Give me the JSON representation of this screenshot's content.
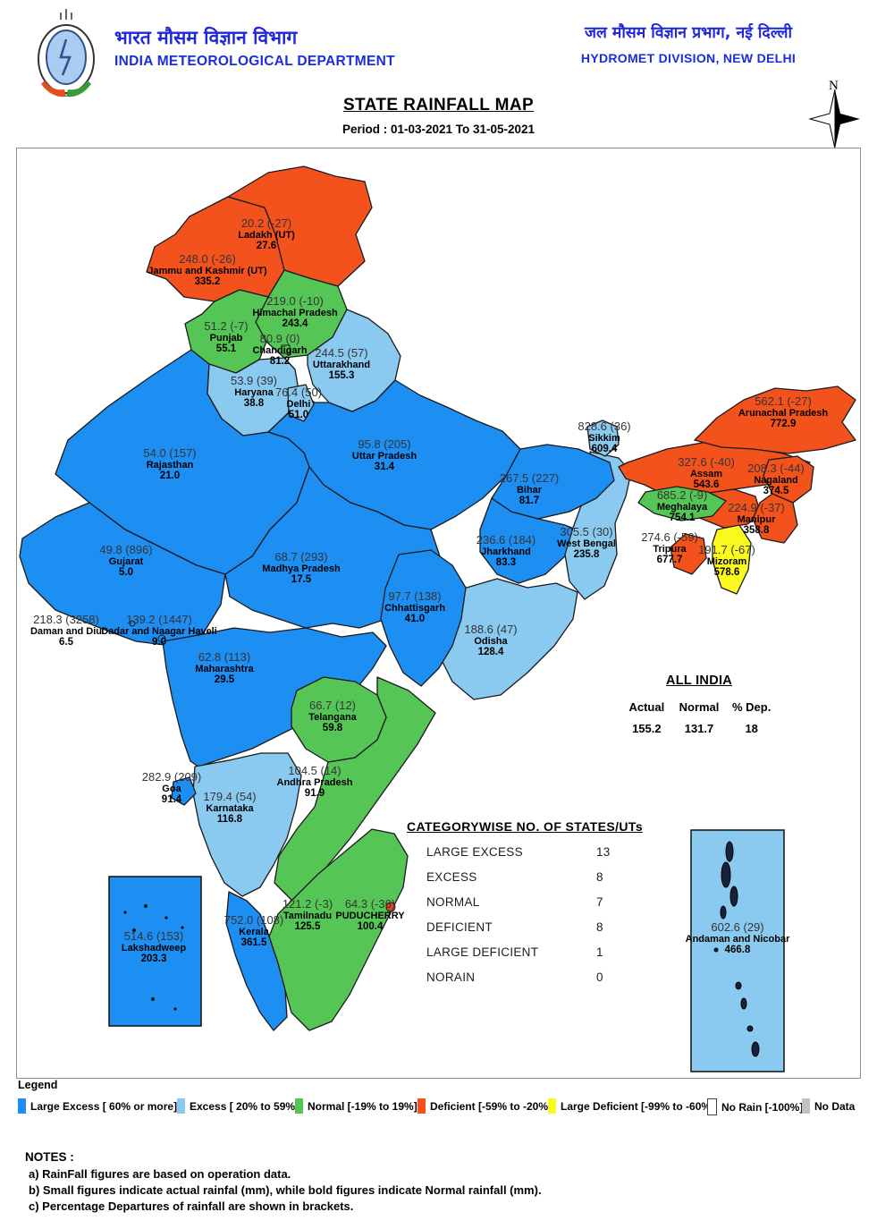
{
  "header": {
    "org_hindi": "भारत मौसम विज्ञान विभाग",
    "org_english": "INDIA METEOROLOGICAL DEPARTMENT",
    "division_hindi": "जल मौसम विज्ञान प्रभाग, नई दिल्ली",
    "division_english": "HYDROMET DIVISION, NEW DELHI",
    "title": "STATE RAINFALL MAP",
    "period": "Period : 01-03-2021 To 31-05-2021",
    "compass_label": "N"
  },
  "map": {
    "states": [
      {
        "id": "rajasthan",
        "name": "Rajasthan",
        "actual": "54.0",
        "departure_pct": "157",
        "normal": "21.0",
        "category": "large_excess"
      },
      {
        "id": "gujarat",
        "name": "Gujarat",
        "actual": "49.8",
        "departure_pct": "896",
        "normal": "5.0",
        "category": "large_excess"
      },
      {
        "id": "uttar_pradesh",
        "name": "Uttar Pradesh",
        "actual": "95.8",
        "departure_pct": "205",
        "normal": "31.4",
        "category": "large_excess"
      },
      {
        "id": "madhya_pradesh",
        "name": "Madhya Pradesh",
        "actual": "68.7",
        "departure_pct": "293",
        "normal": "17.5",
        "category": "large_excess"
      },
      {
        "id": "maharashtra",
        "name": "Maharashtra",
        "actual": "62.8",
        "departure_pct": "113",
        "normal": "29.5",
        "category": "large_excess"
      },
      {
        "id": "andhra_pradesh",
        "name": "Andhra Pradesh",
        "actual": "104.5",
        "departure_pct": "14",
        "normal": "91.9",
        "category": "normal"
      },
      {
        "id": "karnataka",
        "name": "Karnataka",
        "actual": "179.4",
        "departure_pct": "54",
        "normal": "116.8",
        "category": "excess"
      },
      {
        "id": "tamilnadu",
        "name": "Tamilnadu",
        "actual": "121.2",
        "departure_pct": "-3",
        "normal": "125.5",
        "category": "normal"
      },
      {
        "id": "kerala",
        "name": "Kerala",
        "actual": "752.0",
        "departure_pct": "108",
        "normal": "361.5",
        "category": "large_excess"
      },
      {
        "id": "odisha",
        "name": "Odisha",
        "actual": "188.6",
        "departure_pct": "47",
        "normal": "128.4",
        "category": "excess"
      },
      {
        "id": "chhattisgarh",
        "name": "Chhattisgarh",
        "actual": "97.7",
        "departure_pct": "138",
        "normal": "41.0",
        "category": "large_excess"
      },
      {
        "id": "jharkhand",
        "name": "Jharkhand",
        "actual": "236.6",
        "departure_pct": "184",
        "normal": "83.3",
        "category": "large_excess"
      },
      {
        "id": "west_bengal",
        "name": "West Bengal",
        "actual": "305.5",
        "departure_pct": "30",
        "normal": "235.8",
        "category": "excess"
      },
      {
        "id": "bihar",
        "name": "Bihar",
        "actual": "267.5",
        "departure_pct": "227",
        "normal": "81.7",
        "category": "large_excess"
      },
      {
        "id": "telangana",
        "name": "Telangana",
        "actual": "66.7",
        "departure_pct": "12",
        "normal": "59.8",
        "category": "normal"
      },
      {
        "id": "assam",
        "name": "Assam",
        "actual": "327.6",
        "departure_pct": "-40",
        "normal": "543.6",
        "category": "deficient"
      },
      {
        "id": "arunachal_pradesh",
        "name": "Arunachal Pradesh",
        "actual": "562.1",
        "departure_pct": "-27",
        "normal": "772.9",
        "category": "deficient"
      },
      {
        "id": "nagaland",
        "name": "Nagaland",
        "actual": "208.3",
        "departure_pct": "-44",
        "normal": "374.5",
        "category": "deficient"
      },
      {
        "id": "meghalaya",
        "name": "Meghalaya",
        "actual": "685.2",
        "departure_pct": "-9",
        "normal": "754.1",
        "category": "normal"
      },
      {
        "id": "manipur",
        "name": "Manipur",
        "actual": "224.9",
        "departure_pct": "-37",
        "normal": "358.8",
        "category": "deficient"
      },
      {
        "id": "tripura",
        "name": "Tripura",
        "actual": "274.6",
        "departure_pct": "-59",
        "normal": "677.7",
        "category": "deficient"
      },
      {
        "id": "mizoram",
        "name": "Mizoram",
        "actual": "191.7",
        "departure_pct": "-67",
        "normal": "578.6",
        "category": "large_deficient"
      },
      {
        "id": "jammu_kashmir",
        "name": "Jammu and Kashmir (UT)",
        "actual": "248.0",
        "departure_pct": "-26",
        "normal": "335.2",
        "category": "deficient"
      },
      {
        "id": "ladakh",
        "name": "Ladakh (UT)",
        "actual": "20.2",
        "departure_pct": "-27",
        "normal": "27.6",
        "category": "deficient"
      },
      {
        "id": "himachal_pradesh",
        "name": "Himachal Pradesh",
        "actual": "219.0",
        "departure_pct": "-10",
        "normal": "243.4",
        "category": "normal"
      },
      {
        "id": "punjab",
        "name": "Punjab",
        "actual": "51.2",
        "departure_pct": "-7",
        "normal": "55.1",
        "category": "normal"
      },
      {
        "id": "chandigarh",
        "name": "Chandigarh",
        "actual": "80.9",
        "departure_pct": "0",
        "normal": "81.2",
        "category": "normal"
      },
      {
        "id": "uttarakhand",
        "name": "Uttarakhand",
        "actual": "244.5",
        "departure_pct": "57",
        "normal": "155.3",
        "category": "excess"
      },
      {
        "id": "haryana",
        "name": "Haryana",
        "actual": "53.9",
        "departure_pct": "39",
        "normal": "38.8",
        "category": "excess"
      },
      {
        "id": "delhi",
        "name": "Delhi",
        "actual": "76.4",
        "departure_pct": "50",
        "normal": "51.0",
        "category": "excess"
      },
      {
        "id": "sikkim",
        "name": "Sikkim",
        "actual": "828.6",
        "departure_pct": "36",
        "normal": "609.4",
        "category": "excess"
      },
      {
        "id": "goa",
        "name": "Goa",
        "actual": "282.9",
        "departure_pct": "209",
        "normal": "91.4",
        "category": "large_excess"
      },
      {
        "id": "daman_diu",
        "name": "Daman and Diu",
        "actual": "218.3",
        "departure_pct": "3258",
        "normal": "6.5",
        "category": "large_excess"
      },
      {
        "id": "dadra_nagar_haveli",
        "name": "Dadar and Naagar Haveli",
        "actual": "139.2",
        "departure_pct": "1447",
        "normal": "9.0",
        "category": "large_excess"
      },
      {
        "id": "puducherry",
        "name": "PUDUCHERRY",
        "actual": "64.3",
        "departure_pct": "-36",
        "normal": "100.4",
        "category": "deficient"
      },
      {
        "id": "lakshadweep",
        "name": "Lakshadweep",
        "actual": "514.6",
        "departure_pct": "153",
        "normal": "203.3",
        "category": "large_excess"
      },
      {
        "id": "andaman_nicobar",
        "name": "Andaman and Nicobar",
        "actual": "602.6",
        "departure_pct": "29",
        "normal": "466.8",
        "category": "excess"
      }
    ]
  },
  "all_india": {
    "title": "ALL INDIA",
    "columns": [
      "Actual",
      "Normal",
      "% Dep."
    ],
    "values": [
      "155.2",
      "131.7",
      "18"
    ]
  },
  "category_table": {
    "title": "CATEGORYWISE NO. OF STATES/UTs",
    "rows": [
      {
        "label": "LARGE EXCESS",
        "value": "13"
      },
      {
        "label": "EXCESS",
        "value": "8"
      },
      {
        "label": "NORMAL",
        "value": "7"
      },
      {
        "label": "DEFICIENT",
        "value": "8"
      },
      {
        "label": "LARGE DEFICIENT",
        "value": "1"
      },
      {
        "label": "NORAIN",
        "value": "0"
      }
    ]
  },
  "legend": {
    "title": "Legend",
    "items": [
      {
        "id": "large_excess",
        "label": "Large Excess [ 60% or more]",
        "color": "#1d8ef2"
      },
      {
        "id": "excess",
        "label": "Excess [ 20% to 59%]",
        "color": "#8bcaf0"
      },
      {
        "id": "normal",
        "label": "Normal [-19% to 19%]",
        "color": "#55c656"
      },
      {
        "id": "deficient",
        "label": "Deficient [-59% to -20%]",
        "color": "#f4521d"
      },
      {
        "id": "large_deficient",
        "label": "Large Deficient [-99% to -60%]",
        "color": "#fafa1e"
      },
      {
        "id": "no_rain",
        "label": "No Rain  [-100%]",
        "color": "#ffffff"
      },
      {
        "id": "no_data",
        "label": "No Data",
        "color": "#c2c2c2"
      }
    ]
  },
  "notes": {
    "title": "NOTES :",
    "lines": [
      "a) RainFall figures are based on operation data.",
      "b) Small figures indicate actual rainfal (mm), while bold figures indicate Normal rainfall (mm).",
      "c) Percentage Departures of rainfall are shown in brackets."
    ]
  },
  "colors": {
    "header_blue": "#1b2de0",
    "border_gray": "#8f8f8f",
    "city_dot_red": "#e8401c"
  }
}
